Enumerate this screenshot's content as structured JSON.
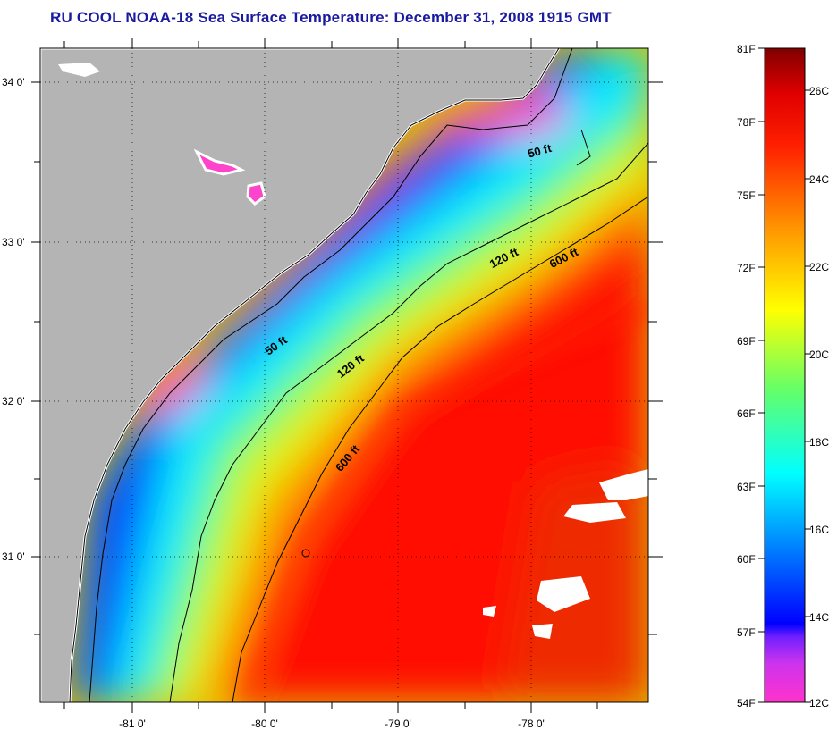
{
  "title": "RU COOL  NOAA-18  Sea Surface Temperature:  December 31, 2008 1915 GMT",
  "map": {
    "lat_ticks": [
      "34 0'",
      "33 0'",
      "32 0'",
      "31 0'"
    ],
    "lon_ticks": [
      "-81 0'",
      "-80 0'",
      "-79 0'",
      "-78 0'"
    ],
    "isobaths": [
      {
        "label": "50 ft"
      },
      {
        "label": "50 ft"
      },
      {
        "label": "120 ft"
      },
      {
        "label": "120 ft"
      },
      {
        "label": "600 ft"
      },
      {
        "label": "600 ft"
      }
    ],
    "colors": {
      "land": "#b4b4b4",
      "cloud": "#ffffff",
      "coast": "#000000"
    }
  },
  "colorbar": {
    "fahrenheit": [
      "81F",
      "78F",
      "75F",
      "72F",
      "69F",
      "66F",
      "63F",
      "60F",
      "57F",
      "54F"
    ],
    "celsius": [
      "26C",
      "24C",
      "22C",
      "20C",
      "18C",
      "16C",
      "14C",
      "12C"
    ],
    "stops": [
      "#ff33cc",
      "#9933ff",
      "#0000ff",
      "#0070ff",
      "#00ffff",
      "#00ff66",
      "#ffff00",
      "#ff9900",
      "#ff2200",
      "#e00000",
      "#800000"
    ]
  }
}
